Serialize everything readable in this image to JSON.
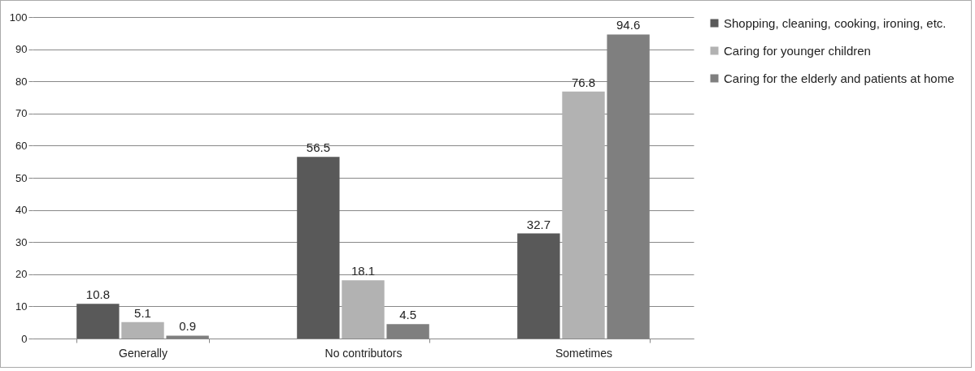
{
  "chart_data": {
    "type": "bar",
    "categories": [
      "Generally",
      "No contributors",
      "Sometimes"
    ],
    "series": [
      {
        "name": "Shopping, cleaning, cooking, ironing, etc.",
        "color": "#595959",
        "values": [
          10.8,
          56.5,
          32.7
        ]
      },
      {
        "name": "Caring for younger children",
        "color": "#b2b2b2",
        "values": [
          5.1,
          18.1,
          76.8
        ]
      },
      {
        "name": "Caring for the elderly and patients at home",
        "color": "#7f7f7f",
        "values": [
          0.9,
          4.5,
          94.6
        ]
      }
    ],
    "ylim": [
      0,
      100
    ],
    "yticks": [
      0,
      10,
      20,
      30,
      40,
      50,
      60,
      70,
      80,
      90,
      100
    ],
    "grid": "y",
    "legend": "right",
    "data_labels": true
  }
}
